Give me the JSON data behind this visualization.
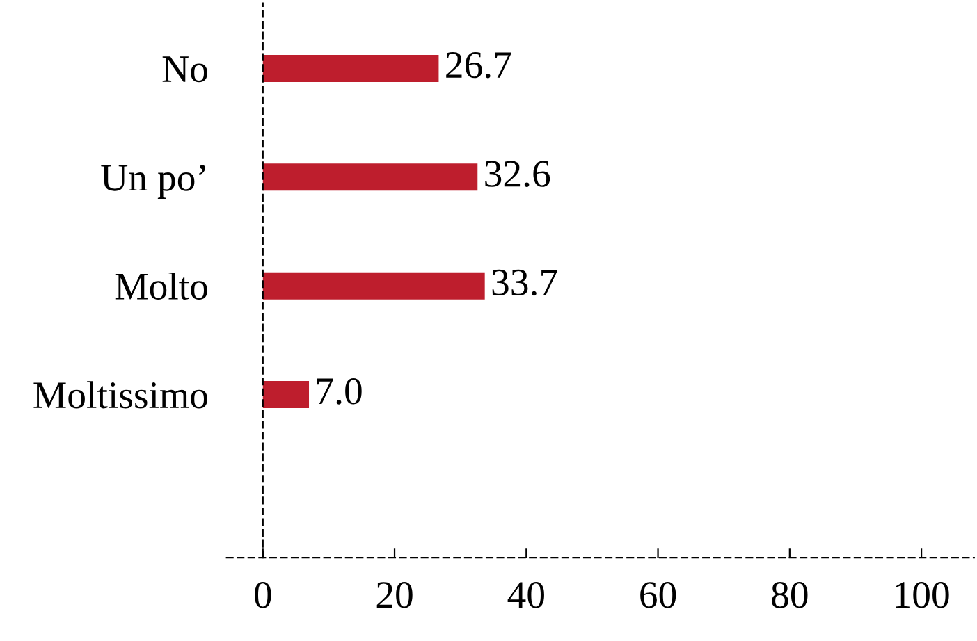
{
  "chart_data": {
    "type": "bar",
    "orientation": "horizontal",
    "categories": [
      "No",
      "Un po’",
      "Molto",
      "Moltissimo"
    ],
    "values": [
      26.7,
      32.6,
      33.7,
      7.0
    ],
    "value_labels": [
      "26.7",
      "32.6",
      "33.7",
      "7.0"
    ],
    "color": "#be1e2d",
    "xlim": [
      -5.5,
      108
    ],
    "xticks": [
      0,
      20,
      40,
      60,
      80,
      100
    ],
    "line_style": "dashed"
  }
}
